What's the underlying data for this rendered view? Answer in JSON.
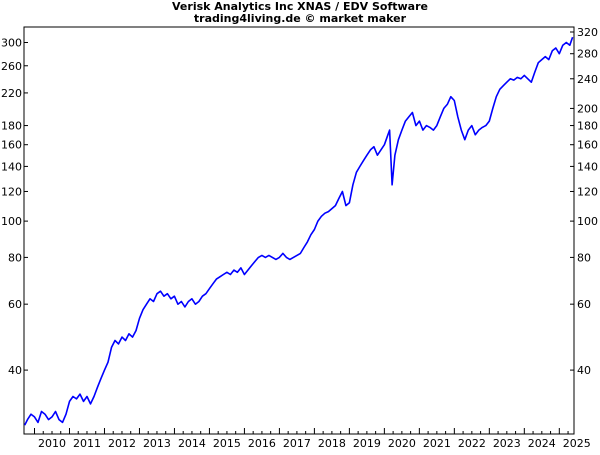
{
  "chart_data": {
    "type": "line",
    "title": "Verisk Analytics Inc XNAS / EDV Software",
    "subtitle": "trading4living.de © market maker",
    "y_scale": "log",
    "ylim": [
      27,
      330
    ],
    "xlim": [
      2009.7,
      2025.42
    ],
    "grid": false,
    "y_ticks_left": [
      300,
      260,
      220,
      180,
      160,
      140,
      120,
      100,
      80,
      60,
      40
    ],
    "y_ticks_right": [
      320,
      280,
      240,
      200,
      180,
      160,
      140,
      120,
      100,
      80,
      60,
      40
    ],
    "x_ticks": [
      "2010",
      "2011",
      "2012",
      "2013",
      "2014",
      "2015",
      "2016",
      "2017",
      "2018",
      "2019",
      "2020",
      "2021",
      "2022",
      "2023",
      "2024",
      "2025"
    ],
    "series": [
      {
        "color": "#0000ff",
        "points": [
          [
            2009.72,
            28.5
          ],
          [
            2009.8,
            29.5
          ],
          [
            2009.9,
            30.5
          ],
          [
            2010.0,
            30.0
          ],
          [
            2010.1,
            29.0
          ],
          [
            2010.2,
            31.0
          ],
          [
            2010.3,
            30.5
          ],
          [
            2010.4,
            29.5
          ],
          [
            2010.5,
            30.0
          ],
          [
            2010.6,
            31.0
          ],
          [
            2010.7,
            29.5
          ],
          [
            2010.8,
            29.0
          ],
          [
            2010.9,
            30.5
          ],
          [
            2011.0,
            33.0
          ],
          [
            2011.1,
            34.0
          ],
          [
            2011.2,
            33.5
          ],
          [
            2011.3,
            34.5
          ],
          [
            2011.4,
            33.0
          ],
          [
            2011.5,
            34.0
          ],
          [
            2011.6,
            32.5
          ],
          [
            2011.7,
            34.0
          ],
          [
            2011.8,
            36.0
          ],
          [
            2011.9,
            38.0
          ],
          [
            2012.0,
            40.0
          ],
          [
            2012.1,
            42.0
          ],
          [
            2012.2,
            46.0
          ],
          [
            2012.3,
            48.0
          ],
          [
            2012.4,
            47.0
          ],
          [
            2012.5,
            49.0
          ],
          [
            2012.6,
            48.0
          ],
          [
            2012.7,
            50.0
          ],
          [
            2012.8,
            49.0
          ],
          [
            2012.9,
            51.0
          ],
          [
            2013.0,
            55.0
          ],
          [
            2013.1,
            58.0
          ],
          [
            2013.2,
            60.0
          ],
          [
            2013.3,
            62.0
          ],
          [
            2013.4,
            61.0
          ],
          [
            2013.5,
            64.0
          ],
          [
            2013.6,
            65.0
          ],
          [
            2013.7,
            63.0
          ],
          [
            2013.8,
            64.0
          ],
          [
            2013.9,
            62.0
          ],
          [
            2014.0,
            63.0
          ],
          [
            2014.1,
            60.0
          ],
          [
            2014.2,
            61.0
          ],
          [
            2014.3,
            59.0
          ],
          [
            2014.4,
            61.0
          ],
          [
            2014.5,
            62.0
          ],
          [
            2014.6,
            60.0
          ],
          [
            2014.7,
            61.0
          ],
          [
            2014.8,
            63.0
          ],
          [
            2014.9,
            64.0
          ],
          [
            2015.0,
            66.0
          ],
          [
            2015.1,
            68.0
          ],
          [
            2015.2,
            70.0
          ],
          [
            2015.3,
            71.0
          ],
          [
            2015.4,
            72.0
          ],
          [
            2015.5,
            73.0
          ],
          [
            2015.6,
            72.0
          ],
          [
            2015.7,
            74.0
          ],
          [
            2015.8,
            73.0
          ],
          [
            2015.9,
            75.0
          ],
          [
            2016.0,
            72.0
          ],
          [
            2016.1,
            74.0
          ],
          [
            2016.2,
            76.0
          ],
          [
            2016.3,
            78.0
          ],
          [
            2016.4,
            80.0
          ],
          [
            2016.5,
            81.0
          ],
          [
            2016.6,
            80.0
          ],
          [
            2016.7,
            81.0
          ],
          [
            2016.8,
            80.0
          ],
          [
            2016.9,
            79.0
          ],
          [
            2017.0,
            80.0
          ],
          [
            2017.1,
            82.0
          ],
          [
            2017.2,
            80.0
          ],
          [
            2017.3,
            79.0
          ],
          [
            2017.4,
            80.0
          ],
          [
            2017.5,
            81.0
          ],
          [
            2017.6,
            82.0
          ],
          [
            2017.7,
            85.0
          ],
          [
            2017.8,
            88.0
          ],
          [
            2017.9,
            92.0
          ],
          [
            2018.0,
            95.0
          ],
          [
            2018.1,
            100.0
          ],
          [
            2018.2,
            103.0
          ],
          [
            2018.3,
            105.0
          ],
          [
            2018.4,
            106.0
          ],
          [
            2018.5,
            108.0
          ],
          [
            2018.6,
            110.0
          ],
          [
            2018.7,
            115.0
          ],
          [
            2018.8,
            120.0
          ],
          [
            2018.9,
            110.0
          ],
          [
            2019.0,
            112.0
          ],
          [
            2019.1,
            125.0
          ],
          [
            2019.2,
            135.0
          ],
          [
            2019.3,
            140.0
          ],
          [
            2019.4,
            145.0
          ],
          [
            2019.5,
            150.0
          ],
          [
            2019.6,
            155.0
          ],
          [
            2019.7,
            158.0
          ],
          [
            2019.8,
            150.0
          ],
          [
            2019.9,
            155.0
          ],
          [
            2020.0,
            160.0
          ],
          [
            2020.1,
            170.0
          ],
          [
            2020.15,
            175.0
          ],
          [
            2020.22,
            125.0
          ],
          [
            2020.3,
            150.0
          ],
          [
            2020.4,
            165.0
          ],
          [
            2020.5,
            175.0
          ],
          [
            2020.6,
            185.0
          ],
          [
            2020.7,
            190.0
          ],
          [
            2020.8,
            195.0
          ],
          [
            2020.9,
            180.0
          ],
          [
            2021.0,
            185.0
          ],
          [
            2021.1,
            175.0
          ],
          [
            2021.2,
            180.0
          ],
          [
            2021.3,
            178.0
          ],
          [
            2021.4,
            175.0
          ],
          [
            2021.5,
            180.0
          ],
          [
            2021.6,
            190.0
          ],
          [
            2021.7,
            200.0
          ],
          [
            2021.8,
            205.0
          ],
          [
            2021.9,
            215.0
          ],
          [
            2022.0,
            210.0
          ],
          [
            2022.1,
            190.0
          ],
          [
            2022.2,
            175.0
          ],
          [
            2022.3,
            165.0
          ],
          [
            2022.4,
            175.0
          ],
          [
            2022.5,
            180.0
          ],
          [
            2022.6,
            170.0
          ],
          [
            2022.7,
            175.0
          ],
          [
            2022.8,
            178.0
          ],
          [
            2022.9,
            180.0
          ],
          [
            2023.0,
            185.0
          ],
          [
            2023.1,
            200.0
          ],
          [
            2023.2,
            215.0
          ],
          [
            2023.3,
            225.0
          ],
          [
            2023.4,
            230.0
          ],
          [
            2023.5,
            235.0
          ],
          [
            2023.6,
            240.0
          ],
          [
            2023.7,
            238.0
          ],
          [
            2023.8,
            242.0
          ],
          [
            2023.9,
            240.0
          ],
          [
            2024.0,
            245.0
          ],
          [
            2024.1,
            240.0
          ],
          [
            2024.2,
            235.0
          ],
          [
            2024.3,
            250.0
          ],
          [
            2024.4,
            265.0
          ],
          [
            2024.5,
            270.0
          ],
          [
            2024.6,
            275.0
          ],
          [
            2024.7,
            270.0
          ],
          [
            2024.8,
            285.0
          ],
          [
            2024.9,
            290.0
          ],
          [
            2025.0,
            280.0
          ],
          [
            2025.1,
            295.0
          ],
          [
            2025.2,
            300.0
          ],
          [
            2025.3,
            295.0
          ],
          [
            2025.38,
            310.0
          ]
        ]
      }
    ]
  }
}
